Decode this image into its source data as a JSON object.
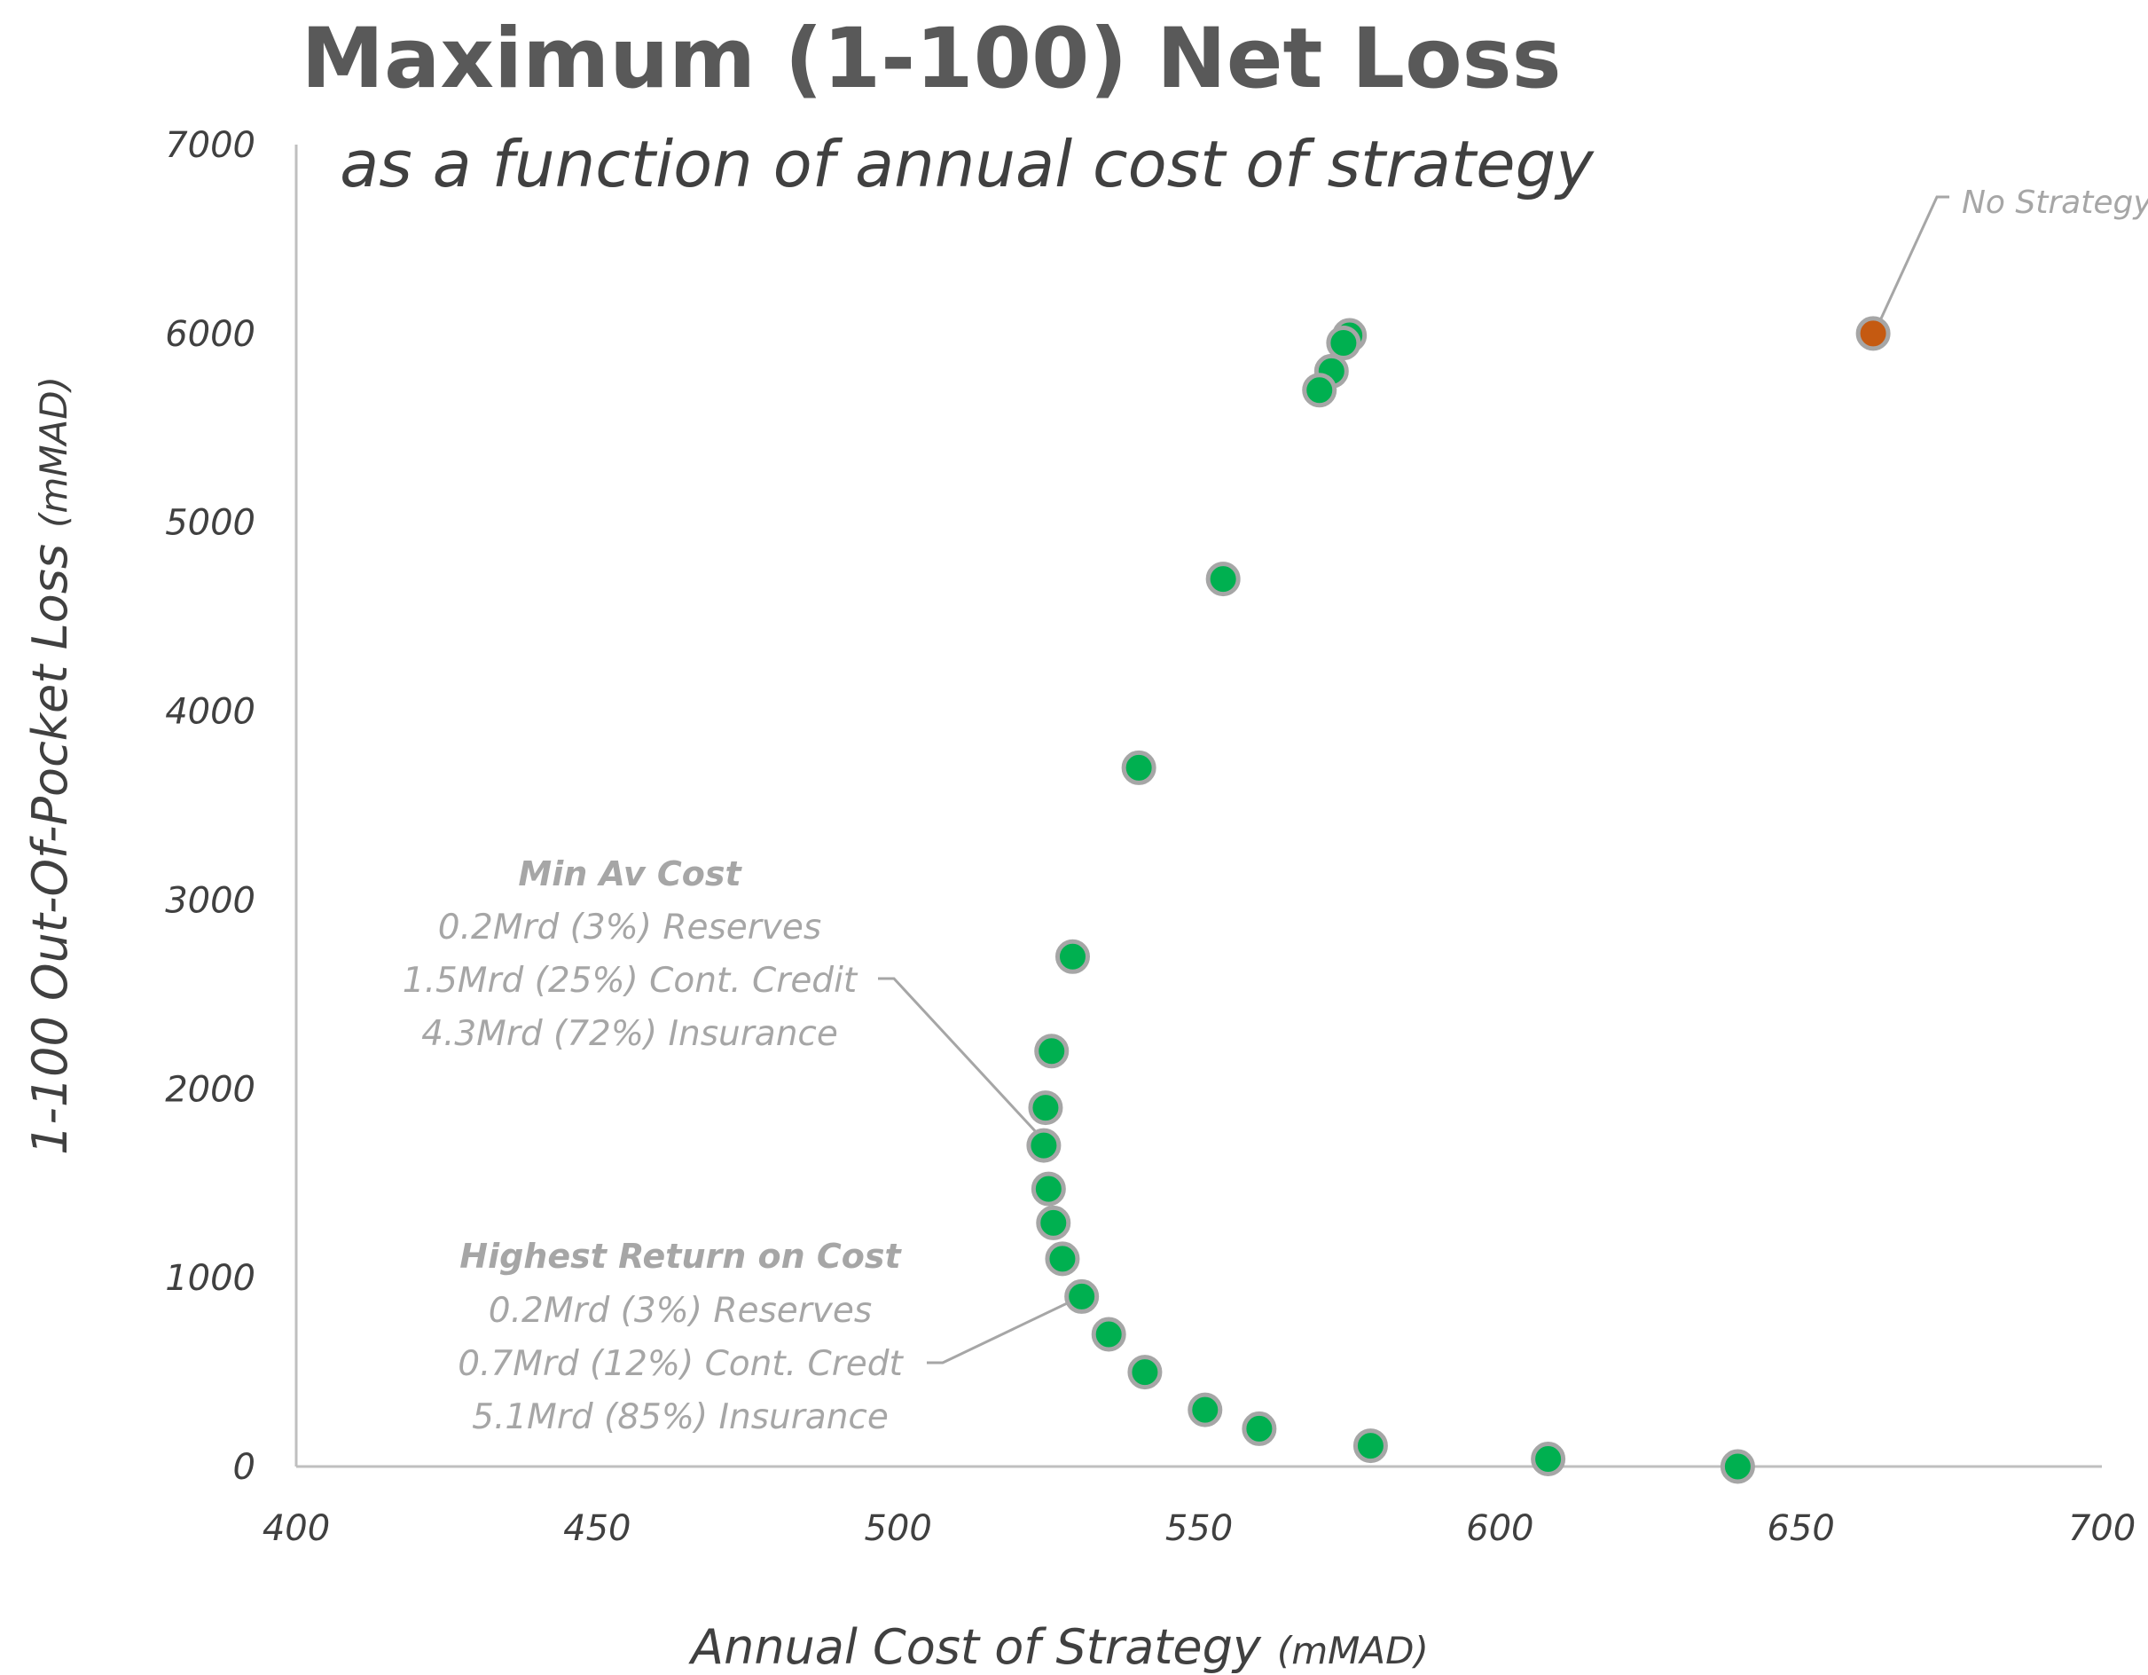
{
  "chart_data": {
    "type": "scatter",
    "title": "Maximum (1-100) Net Loss",
    "subtitle": "as a function of annual cost of strategy",
    "xlabel": "Annual Cost of Strategy",
    "xlabel_unit": "(mMAD)",
    "ylabel": "1-100 Out-Of-Pocket Loss",
    "ylabel_unit": "(mMAD)",
    "xlim": [
      400,
      700
    ],
    "ylim": [
      0,
      7000
    ],
    "xticks": [
      400,
      450,
      500,
      550,
      600,
      650,
      700
    ],
    "yticks": [
      0,
      1000,
      2000,
      3000,
      4000,
      5000,
      6000,
      7000
    ],
    "grid": false,
    "colors": {
      "strategy": "#00b050",
      "no_strategy": "#c55a11",
      "marker_edge": "#a6a6a6",
      "axis": "#bfbfbf",
      "annotation": "#a6a6a6"
    },
    "series": [
      {
        "color": "#00b050",
        "points": [
          {
            "x": 575,
            "y": 5990
          },
          {
            "x": 574,
            "y": 5950
          },
          {
            "x": 572,
            "y": 5800
          },
          {
            "x": 570,
            "y": 5700
          },
          {
            "x": 554,
            "y": 4700
          },
          {
            "x": 540,
            "y": 3700
          },
          {
            "x": 529,
            "y": 2700
          },
          {
            "x": 525.5,
            "y": 2200
          },
          {
            "x": 524.5,
            "y": 1900
          },
          {
            "x": 524.2,
            "y": 1700
          },
          {
            "x": 525,
            "y": 1470
          },
          {
            "x": 525.8,
            "y": 1290
          },
          {
            "x": 527.3,
            "y": 1100
          },
          {
            "x": 530.5,
            "y": 900
          },
          {
            "x": 535,
            "y": 700
          },
          {
            "x": 541,
            "y": 500
          },
          {
            "x": 551,
            "y": 300
          },
          {
            "x": 560,
            "y": 200
          },
          {
            "x": 578.5,
            "y": 110
          },
          {
            "x": 608,
            "y": 40
          },
          {
            "x": 639.5,
            "y": 0
          }
        ]
      },
      {
        "color": "#c55a11",
        "points": [
          {
            "x": 662,
            "y": 6000
          }
        ]
      }
    ],
    "annotations": [
      {
        "id": "min-av-cost",
        "target": {
          "x": 524.2,
          "y": 1700
        },
        "heading": "Min Av Cost",
        "lines": [
          "0.2Mrd (3%) Reserves",
          "1.5Mrd (25%) Cont. Credit",
          "4.3Mrd (72%) Insurance"
        ]
      },
      {
        "id": "highest-return",
        "target": {
          "x": 530.5,
          "y": 900
        },
        "heading": "Highest Return on Cost",
        "lines": [
          "0.2Mrd (3%) Reserves",
          "0.7Mrd (12%) Cont. Credt",
          "5.1Mrd (85%) Insurance"
        ]
      },
      {
        "id": "no-strategy",
        "target": {
          "x": 662,
          "y": 6000
        },
        "heading": "No Strategy",
        "lines": []
      }
    ]
  }
}
